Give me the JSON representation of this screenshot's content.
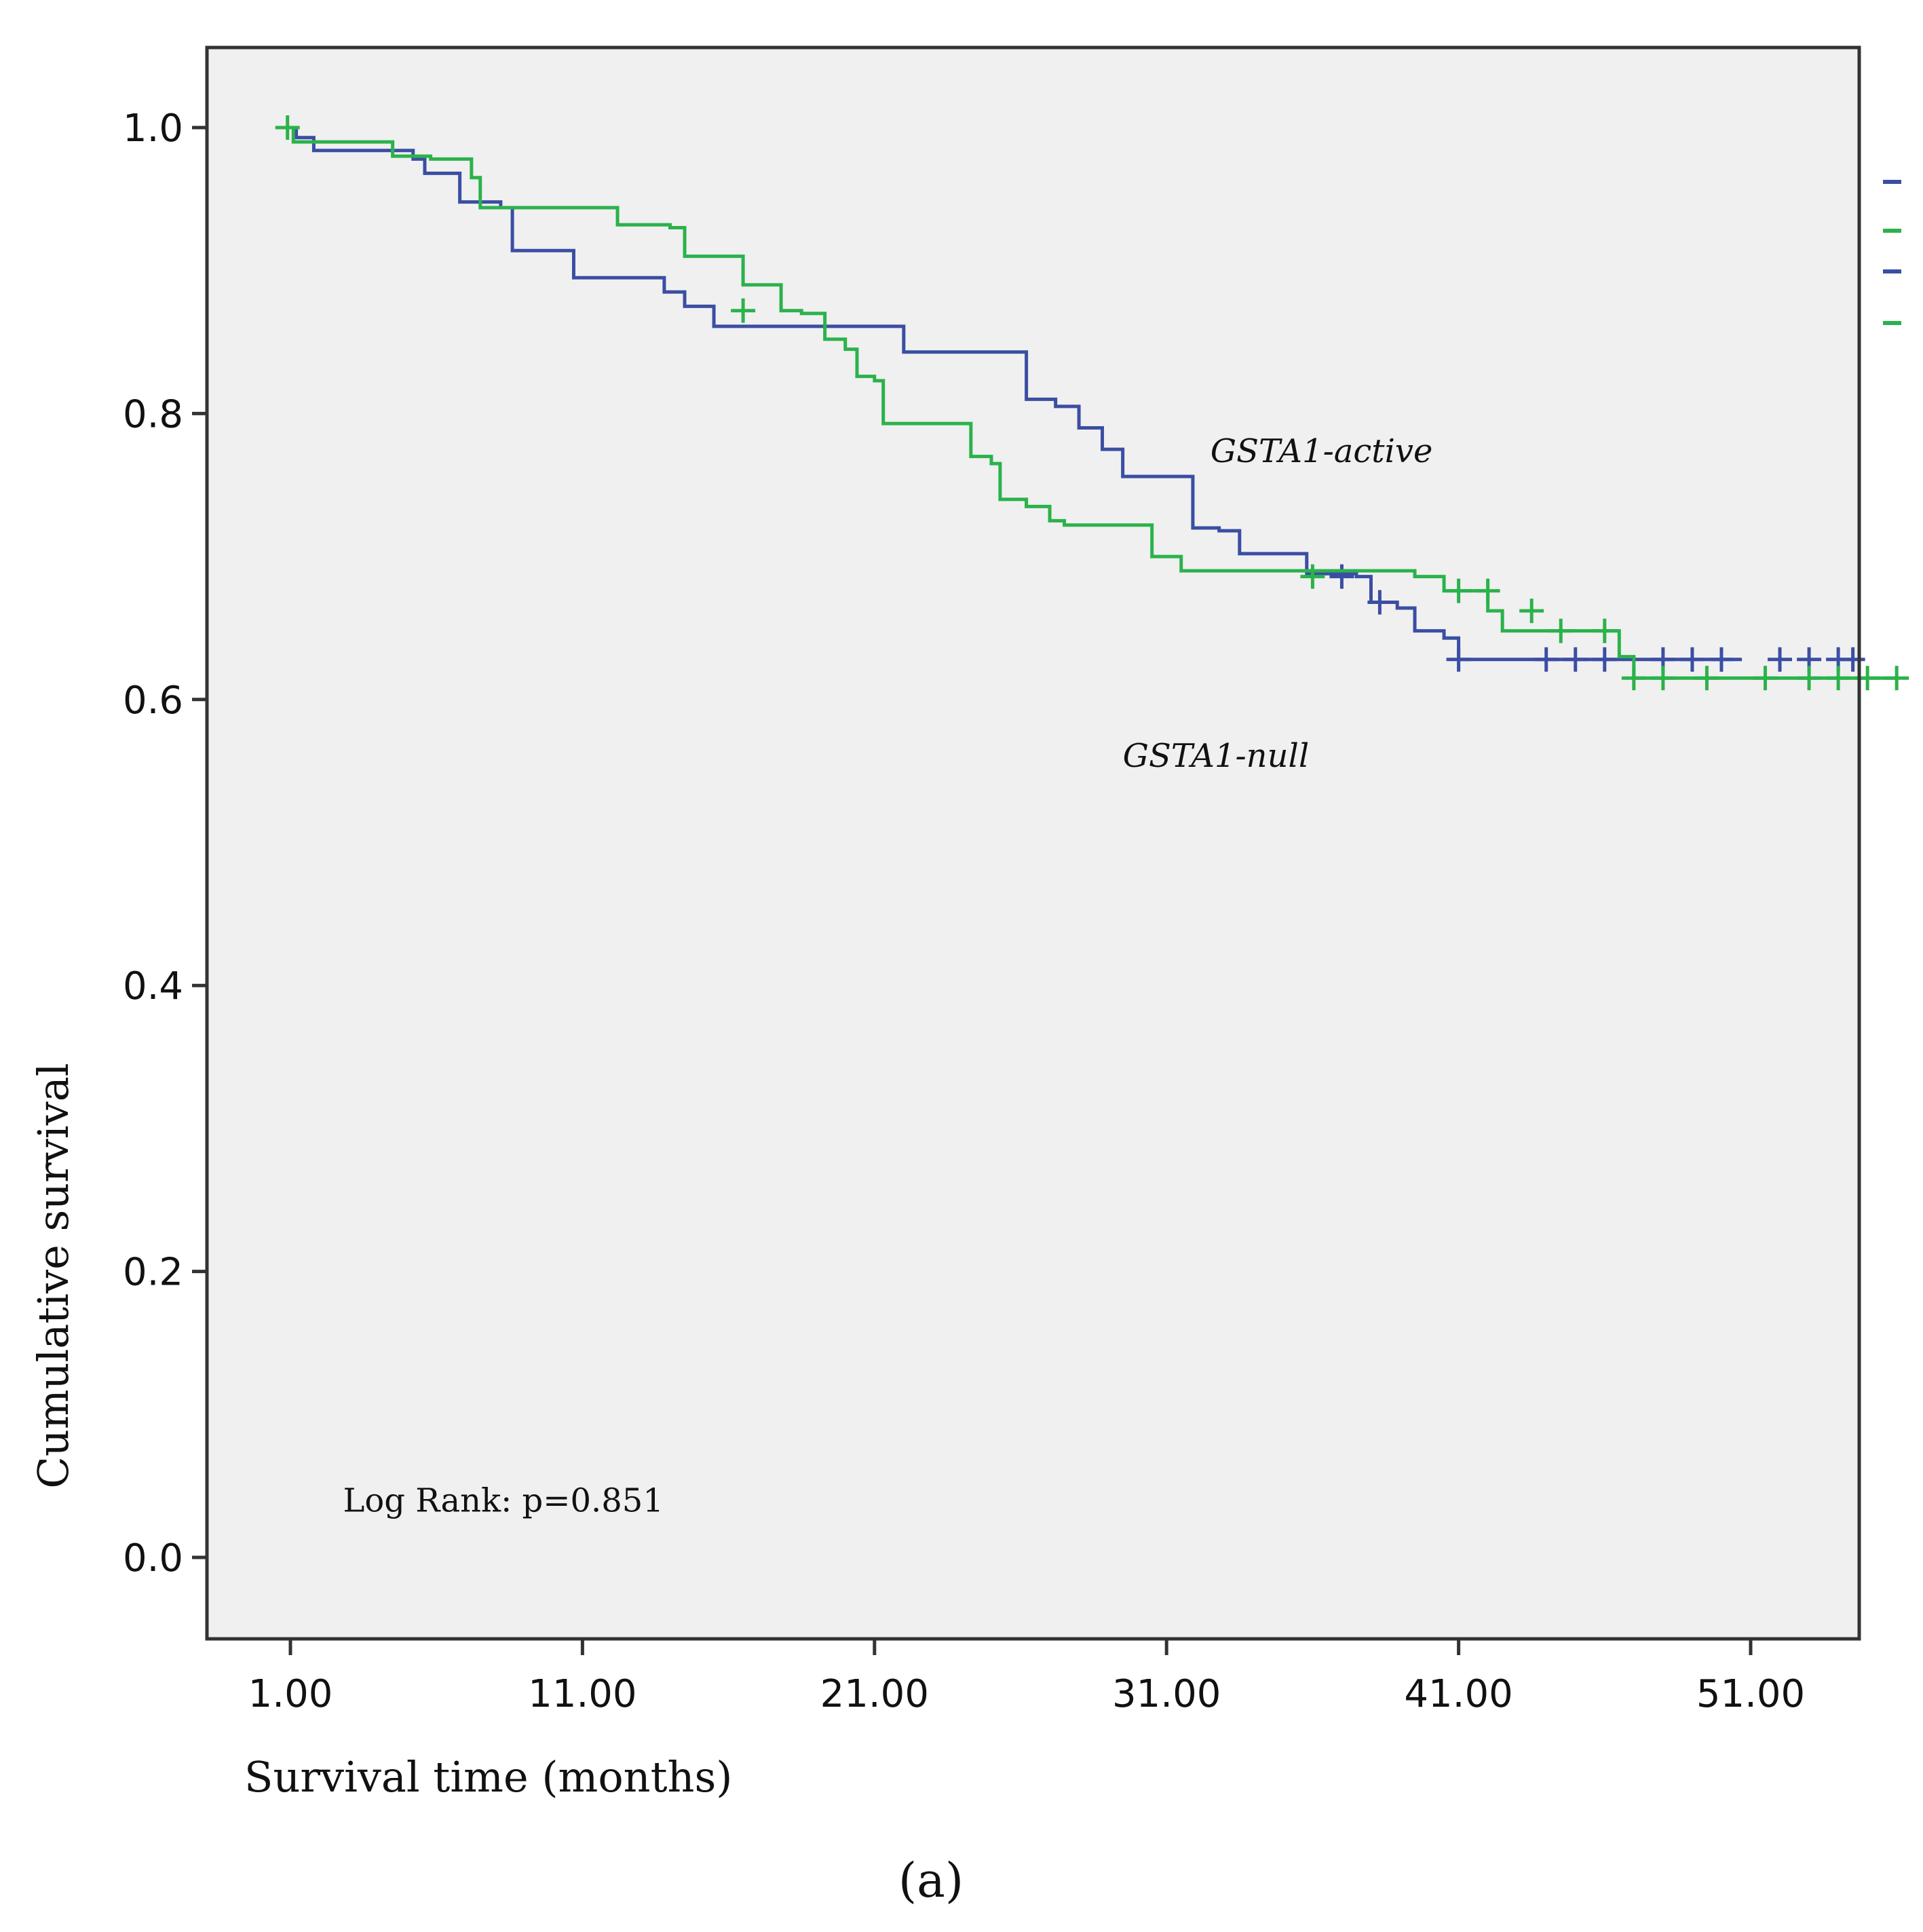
{
  "chart_data": {
    "type": "line",
    "subtype": "kaplan-meier",
    "title": "",
    "xlabel": "Survival time (months)",
    "ylabel": "Cumulative survival",
    "xlim": [
      -2,
      56
    ],
    "ylim": [
      -0.05,
      1.06
    ],
    "x_ticks": [
      1,
      11,
      21,
      31,
      41,
      51
    ],
    "x_tick_labels": [
      "1.00",
      "11.00",
      "21.00",
      "31.00",
      "41.00",
      "51.00"
    ],
    "y_ticks": [
      0.0,
      0.2,
      0.4,
      0.6,
      0.8,
      1.0
    ],
    "y_tick_labels": [
      "0.0",
      "0.2",
      "0.4",
      "0.6",
      "0.8",
      "1.0"
    ],
    "grid": false,
    "legend_position": "right (labels clipped)",
    "series": [
      {
        "name": "GSTA1-active",
        "color": "#3b4ea3",
        "steps": [
          [
            0.9,
            1.0
          ],
          [
            1.2,
            0.993
          ],
          [
            1.8,
            0.984
          ],
          [
            4.0,
            0.984
          ],
          [
            5.2,
            0.978
          ],
          [
            5.6,
            0.968
          ],
          [
            6.8,
            0.948
          ],
          [
            8.2,
            0.944
          ],
          [
            8.6,
            0.914
          ],
          [
            10.0,
            0.914
          ],
          [
            10.7,
            0.895
          ],
          [
            13.5,
            0.895
          ],
          [
            13.8,
            0.885
          ],
          [
            14.5,
            0.875
          ],
          [
            15.5,
            0.861
          ],
          [
            22.0,
            0.861
          ],
          [
            22.0,
            0.843
          ],
          [
            26.0,
            0.843
          ],
          [
            26.2,
            0.81
          ],
          [
            27.2,
            0.805
          ],
          [
            28.0,
            0.79
          ],
          [
            28.8,
            0.775
          ],
          [
            29.5,
            0.756
          ],
          [
            31.5,
            0.756
          ],
          [
            31.9,
            0.72
          ],
          [
            32.8,
            0.718
          ],
          [
            33.5,
            0.702
          ],
          [
            35.5,
            0.702
          ],
          [
            35.8,
            0.688
          ],
          [
            37.5,
            0.686
          ],
          [
            38.0,
            0.668
          ],
          [
            38.9,
            0.664
          ],
          [
            39.5,
            0.648
          ],
          [
            40.5,
            0.643
          ],
          [
            41.0,
            0.628
          ],
          [
            50.7,
            0.628
          ]
        ],
        "censored": [
          [
            37.0,
            0.686
          ],
          [
            38.3,
            0.668
          ],
          [
            41.0,
            0.628
          ],
          [
            44.0,
            0.628
          ],
          [
            45.0,
            0.628
          ],
          [
            46.0,
            0.628
          ],
          [
            48.0,
            0.628
          ],
          [
            49.0,
            0.628
          ],
          [
            50.0,
            0.628
          ],
          [
            52.0,
            0.628
          ],
          [
            53.0,
            0.628
          ],
          [
            54.0,
            0.628
          ],
          [
            54.5,
            0.628
          ]
        ]
      },
      {
        "name": "GSTA1-null",
        "color": "#2bb24b",
        "steps": [
          [
            0.9,
            1.0
          ],
          [
            1.1,
            0.99
          ],
          [
            4.3,
            0.99
          ],
          [
            4.5,
            0.98
          ],
          [
            5.8,
            0.978
          ],
          [
            7.2,
            0.965
          ],
          [
            7.5,
            0.944
          ],
          [
            12.0,
            0.944
          ],
          [
            12.2,
            0.932
          ],
          [
            14.0,
            0.93
          ],
          [
            14.5,
            0.91
          ],
          [
            15.5,
            0.91
          ],
          [
            16.5,
            0.89
          ],
          [
            17.5,
            0.89
          ],
          [
            17.8,
            0.872
          ],
          [
            18.5,
            0.87
          ],
          [
            19.3,
            0.852
          ],
          [
            20.0,
            0.845
          ],
          [
            20.4,
            0.826
          ],
          [
            21.0,
            0.823
          ],
          [
            21.3,
            0.793
          ],
          [
            23.0,
            0.793
          ],
          [
            24.0,
            0.793
          ],
          [
            24.3,
            0.77
          ],
          [
            25.0,
            0.765
          ],
          [
            25.3,
            0.74
          ],
          [
            26.2,
            0.735
          ],
          [
            27.0,
            0.725
          ],
          [
            27.5,
            0.722
          ],
          [
            30.2,
            0.722
          ],
          [
            30.5,
            0.7
          ],
          [
            31.5,
            0.69
          ],
          [
            38.5,
            0.69
          ],
          [
            39.5,
            0.686
          ],
          [
            40.5,
            0.676
          ],
          [
            41.5,
            0.676
          ],
          [
            42.0,
            0.662
          ],
          [
            42.5,
            0.648
          ],
          [
            46.0,
            0.648
          ],
          [
            46.5,
            0.63
          ],
          [
            47.0,
            0.615
          ],
          [
            56.0,
            0.615
          ]
        ],
        "censored": [
          [
            0.9,
            1.0
          ],
          [
            16.5,
            0.872
          ],
          [
            36.0,
            0.686
          ],
          [
            41.0,
            0.676
          ],
          [
            42.0,
            0.676
          ],
          [
            43.5,
            0.662
          ],
          [
            44.5,
            0.648
          ],
          [
            46.0,
            0.648
          ],
          [
            47.0,
            0.615
          ],
          [
            48.0,
            0.615
          ],
          [
            49.5,
            0.615
          ],
          [
            51.5,
            0.615
          ],
          [
            53.0,
            0.615
          ],
          [
            54.0,
            0.615
          ],
          [
            55.0,
            0.615
          ],
          [
            56.0,
            0.615
          ]
        ]
      }
    ],
    "annotations": [
      {
        "text": "GSTA1-active",
        "x": 32.5,
        "y": 0.766,
        "style": "italic"
      },
      {
        "text": "GSTA1-null",
        "x": 29.5,
        "y": 0.553,
        "style": "italic"
      },
      {
        "text": "Log Rank: p=0.851",
        "x": 2.8,
        "y": 0.032,
        "style": "normal"
      }
    ],
    "legend_marks": [
      {
        "color": "#3b4ea3",
        "style": "line",
        "series": "GSTA1-active"
      },
      {
        "color": "#2bb24b",
        "style": "line",
        "series": "GSTA1-null"
      },
      {
        "color": "#3b4ea3",
        "style": "censored",
        "series": "GSTA1-active"
      },
      {
        "color": "#2bb24b",
        "style": "censored",
        "series": "GSTA1-null"
      }
    ],
    "caption": "(a)"
  },
  "colors": {
    "plot_background": "#f0f0f0",
    "frame": "#333333"
  }
}
